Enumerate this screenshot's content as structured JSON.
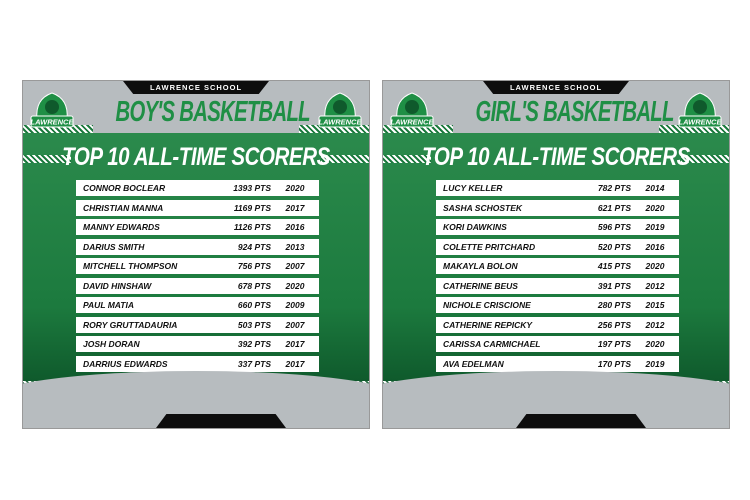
{
  "colors": {
    "green": "#1c7a3e",
    "gray": "#b7bcbf",
    "black": "#0d0d0d"
  },
  "panels": [
    {
      "school": "LAWRENCE SCHOOL",
      "sport": "BOY'S BASKETBALL",
      "heading": "TOP 10 ALL-TIME SCORERS",
      "logo_text": "LAWRENCE",
      "rows": [
        {
          "name": "CONNOR BOCLEAR",
          "pts": "1393 PTS",
          "year": "2020"
        },
        {
          "name": "CHRISTIAN MANNA",
          "pts": "1169 PTS",
          "year": "2017"
        },
        {
          "name": "MANNY EDWARDS",
          "pts": "1126 PTS",
          "year": "2016"
        },
        {
          "name": "DARIUS SMITH",
          "pts": "924 PTS",
          "year": "2013"
        },
        {
          "name": "MITCHELL THOMPSON",
          "pts": "756 PTS",
          "year": "2007"
        },
        {
          "name": "DAVID HINSHAW",
          "pts": "678 PTS",
          "year": "2020"
        },
        {
          "name": "PAUL MATIA",
          "pts": "660 PTS",
          "year": "2009"
        },
        {
          "name": "RORY GRUTTADAURIA",
          "pts": "503 PTS",
          "year": "2007"
        },
        {
          "name": "JOSH DORAN",
          "pts": "392 PTS",
          "year": "2017"
        },
        {
          "name": "DARRIUS EDWARDS",
          "pts": "337 PTS",
          "year": "2017"
        }
      ]
    },
    {
      "school": "LAWRENCE SCHOOL",
      "sport": "GIRL'S BASKETBALL",
      "heading": "TOP 10 ALL-TIME SCORERS",
      "logo_text": "LAWRENCE",
      "rows": [
        {
          "name": "LUCY KELLER",
          "pts": "782 PTS",
          "year": "2014"
        },
        {
          "name": "SASHA SCHOSTEK",
          "pts": "621 PTS",
          "year": "2020"
        },
        {
          "name": "KORI DAWKINS",
          "pts": "596 PTS",
          "year": "2019"
        },
        {
          "name": "COLETTE PRITCHARD",
          "pts": "520 PTS",
          "year": "2016"
        },
        {
          "name": "MAKAYLA BOLON",
          "pts": "415 PTS",
          "year": "2020"
        },
        {
          "name": "CATHERINE BEUS",
          "pts": "391 PTS",
          "year": "2012"
        },
        {
          "name": "NICHOLE CRISCIONE",
          "pts": "280 PTS",
          "year": "2015"
        },
        {
          "name": "CATHERINE REPICKY",
          "pts": "256 PTS",
          "year": "2012"
        },
        {
          "name": "CARISSA CARMICHAEL",
          "pts": "197 PTS",
          "year": "2020"
        },
        {
          "name": "AVA EDELMAN",
          "pts": "170 PTS",
          "year": "2019"
        }
      ]
    }
  ]
}
